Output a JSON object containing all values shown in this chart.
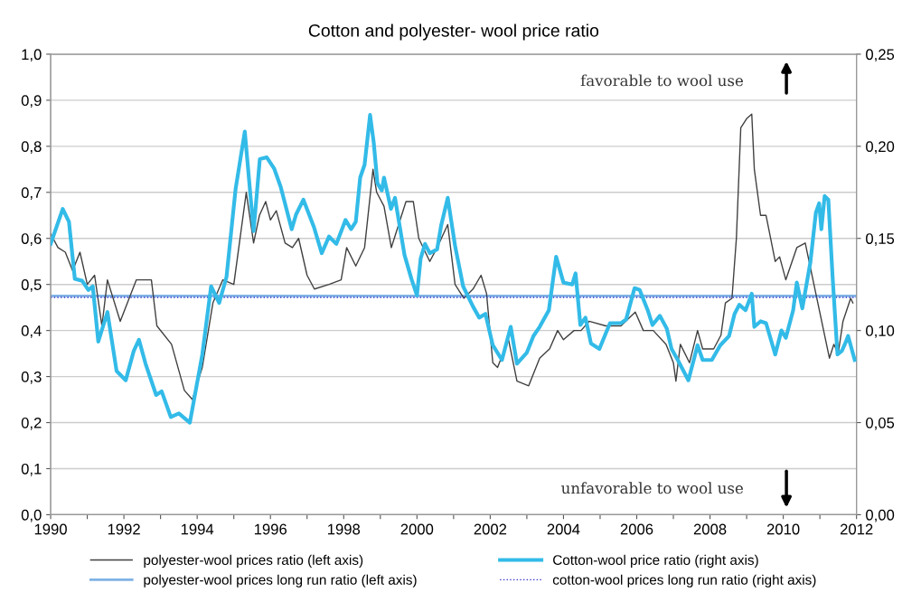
{
  "chart_data": {
    "type": "line",
    "title": "Cotton and polyester- wool price ratio",
    "xlim": [
      1990,
      2012
    ],
    "xticks": [
      1990,
      {
        "value": 1991,
        "label": null
      },
      1992,
      {
        "value": 1993,
        "label": null
      },
      1994,
      {
        "value": 1995,
        "label": null
      },
      1996,
      {
        "value": 1997,
        "label": null
      },
      1998,
      {
        "value": 1999,
        "label": null
      },
      2000,
      {
        "value": 2001,
        "label": null
      },
      2002,
      {
        "value": 2003,
        "label": null
      },
      2004,
      {
        "value": 2005,
        "label": null
      },
      2006,
      {
        "value": 2007,
        "label": null
      },
      2008,
      {
        "value": 2009,
        "label": null
      },
      2010,
      {
        "value": 2011,
        "label": null
      },
      2012
    ],
    "ylim": [
      0,
      1
    ],
    "yticks": [
      {
        "value": 0,
        "label": "0,0"
      },
      {
        "value": 0.1,
        "label": "0,1"
      },
      {
        "value": 0.2,
        "label": "0,2"
      },
      {
        "value": 0.3,
        "label": "0,3"
      },
      {
        "value": 0.4,
        "label": "0,4"
      },
      {
        "value": 0.5,
        "label": "0,5"
      },
      {
        "value": 0.6,
        "label": "0,6"
      },
      {
        "value": 0.7,
        "label": "0,7"
      },
      {
        "value": 0.8,
        "label": "0,8"
      },
      {
        "value": 0.9,
        "label": "0,9"
      },
      {
        "value": 1,
        "label": "1,0"
      }
    ],
    "y2lim": [
      0,
      0.25
    ],
    "y2ticks": [
      {
        "value": 0,
        "label": "0,00"
      },
      {
        "value": 0.05,
        "label": "0,05"
      },
      {
        "value": 0.1,
        "label": "0,10"
      },
      {
        "value": 0.15,
        "label": "0,15"
      },
      {
        "value": 0.2,
        "label": "0,20"
      },
      {
        "value": 0.25,
        "label": "0,25"
      }
    ],
    "grid": "y",
    "legend": "bottom",
    "annotations": [
      "favorable to wool use",
      "unfavorable to wool use"
    ],
    "series": [
      {
        "name": "polyester-wool prices ratio (left axis)",
        "color": "#404040",
        "axis": "y",
        "line_style": "solid",
        "x": [
          1990.0,
          1990.2,
          1990.4,
          1990.6,
          1990.8,
          1991.0,
          1991.2,
          1991.4,
          1991.55,
          1991.9,
          1992.34,
          1992.75,
          1992.9,
          1993.3,
          1993.65,
          1993.87,
          1994.14,
          1994.43,
          1994.7,
          1995.0,
          1995.34,
          1995.54,
          1995.7,
          1995.87,
          1996.0,
          1996.16,
          1996.4,
          1996.6,
          1996.77,
          1997.0,
          1997.2,
          1997.6,
          1997.93,
          1998.08,
          1998.33,
          1998.57,
          1998.8,
          1998.9,
          1999.1,
          1999.3,
          1999.5,
          1999.7,
          1999.9,
          2000.05,
          2000.35,
          2000.55,
          2000.84,
          2001.04,
          2001.28,
          2001.53,
          2001.75,
          2001.9,
          2002.07,
          2002.2,
          2002.5,
          2002.73,
          2003.05,
          2003.35,
          2003.62,
          2003.84,
          2004.0,
          2004.29,
          2004.48,
          2004.7,
          2005.15,
          2005.57,
          2005.96,
          2006.18,
          2006.45,
          2006.8,
          2007.0,
          2007.07,
          2007.19,
          2007.44,
          2007.66,
          2007.8,
          2008.1,
          2008.3,
          2008.42,
          2008.6,
          2008.72,
          2008.84,
          2009.0,
          2009.14,
          2009.21,
          2009.38,
          2009.53,
          2009.78,
          2009.9,
          2010.07,
          2010.37,
          2010.6,
          2010.89,
          2011.26,
          2011.38,
          2011.5,
          2011.63,
          2011.84,
          2011.9
        ],
        "values": [
          0.61,
          0.58,
          0.57,
          0.53,
          0.57,
          0.5,
          0.52,
          0.41,
          0.51,
          0.42,
          0.51,
          0.51,
          0.41,
          0.37,
          0.27,
          0.25,
          0.32,
          0.46,
          0.51,
          0.5,
          0.7,
          0.59,
          0.65,
          0.68,
          0.64,
          0.66,
          0.59,
          0.58,
          0.6,
          0.52,
          0.49,
          0.5,
          0.51,
          0.58,
          0.54,
          0.58,
          0.75,
          0.7,
          0.67,
          0.58,
          0.63,
          0.68,
          0.68,
          0.6,
          0.55,
          0.58,
          0.63,
          0.5,
          0.47,
          0.49,
          0.52,
          0.48,
          0.33,
          0.32,
          0.38,
          0.29,
          0.28,
          0.34,
          0.36,
          0.4,
          0.38,
          0.4,
          0.4,
          0.42,
          0.41,
          0.41,
          0.44,
          0.4,
          0.4,
          0.37,
          0.33,
          0.29,
          0.37,
          0.33,
          0.4,
          0.36,
          0.36,
          0.39,
          0.46,
          0.47,
          0.6,
          0.84,
          0.86,
          0.87,
          0.75,
          0.65,
          0.65,
          0.55,
          0.56,
          0.51,
          0.58,
          0.59,
          0.48,
          0.34,
          0.37,
          0.35,
          0.42,
          0.47,
          0.46
        ]
      },
      {
        "name": "Cotton-wool price ratio (right axis)",
        "color": "#33bbe8",
        "axis": "y2",
        "line_style": "solid",
        "x": [
          1990.0,
          1990.33,
          1990.5,
          1990.66,
          1990.86,
          1991.03,
          1991.15,
          1991.3,
          1991.55,
          1991.8,
          1992.05,
          1992.27,
          1992.41,
          1992.59,
          1992.88,
          1993.03,
          1993.28,
          1993.5,
          1993.8,
          1994.14,
          1994.38,
          1994.6,
          1994.8,
          1995.05,
          1995.3,
          1995.54,
          1995.71,
          1995.9,
          1996.1,
          1996.28,
          1996.58,
          1996.7,
          1996.9,
          1997.19,
          1997.4,
          1997.6,
          1997.8,
          1998.05,
          1998.2,
          1998.33,
          1998.45,
          1998.57,
          1998.72,
          1998.82,
          1998.92,
          1999.04,
          1999.1,
          1999.29,
          1999.4,
          1999.66,
          1999.85,
          2000.0,
          2000.1,
          2000.22,
          2000.35,
          2000.55,
          2000.66,
          2000.84,
          2001.04,
          2001.26,
          2001.53,
          2001.7,
          2001.87,
          2002.07,
          2002.32,
          2002.56,
          2002.73,
          2003.0,
          2003.18,
          2003.35,
          2003.6,
          2003.8,
          2004.0,
          2004.24,
          2004.33,
          2004.46,
          2004.6,
          2004.75,
          2004.98,
          2005.27,
          2005.57,
          2005.71,
          2005.94,
          2006.08,
          2006.3,
          2006.43,
          2006.63,
          2006.82,
          2006.95,
          2007.12,
          2007.41,
          2007.66,
          2007.8,
          2008.05,
          2008.28,
          2008.52,
          2008.67,
          2008.8,
          2008.97,
          2009.14,
          2009.21,
          2009.38,
          2009.53,
          2009.78,
          2009.95,
          2010.07,
          2010.27,
          2010.37,
          2010.52,
          2010.74,
          2010.89,
          2010.98,
          2011.04,
          2011.13,
          2011.23,
          2011.35,
          2011.48,
          2011.6,
          2011.67,
          2011.77,
          2011.95
        ],
        "values": [
          0.147,
          0.166,
          0.159,
          0.128,
          0.127,
          0.122,
          0.124,
          0.094,
          0.11,
          0.078,
          0.073,
          0.089,
          0.095,
          0.082,
          0.065,
          0.067,
          0.053,
          0.055,
          0.05,
          0.087,
          0.124,
          0.115,
          0.129,
          0.177,
          0.208,
          0.154,
          0.193,
          0.194,
          0.188,
          0.178,
          0.155,
          0.163,
          0.171,
          0.156,
          0.142,
          0.151,
          0.147,
          0.16,
          0.155,
          0.159,
          0.183,
          0.19,
          0.217,
          0.202,
          0.18,
          0.176,
          0.183,
          0.166,
          0.172,
          0.141,
          0.128,
          0.119,
          0.139,
          0.147,
          0.142,
          0.144,
          0.157,
          0.172,
          0.146,
          0.124,
          0.113,
          0.107,
          0.109,
          0.092,
          0.084,
          0.102,
          0.082,
          0.088,
          0.097,
          0.102,
          0.111,
          0.14,
          0.126,
          0.125,
          0.131,
          0.103,
          0.107,
          0.093,
          0.09,
          0.104,
          0.104,
          0.106,
          0.123,
          0.122,
          0.111,
          0.103,
          0.108,
          0.101,
          0.09,
          0.084,
          0.073,
          0.092,
          0.084,
          0.084,
          0.092,
          0.097,
          0.109,
          0.114,
          0.111,
          0.12,
          0.102,
          0.105,
          0.104,
          0.087,
          0.1,
          0.096,
          0.111,
          0.126,
          0.112,
          0.137,
          0.164,
          0.169,
          0.155,
          0.173,
          0.171,
          0.128,
          0.087,
          0.089,
          0.092,
          0.097,
          0.084
        ]
      },
      {
        "name": "polyester-wool prices long run ratio (left axis)",
        "color": "#7fb2e5",
        "axis": "y",
        "line_style": "solid",
        "x": [
          1990,
          2012
        ],
        "values": [
          0.475,
          0.475
        ]
      },
      {
        "name": "cotton-wool prices long run ratio (right axis)",
        "color": "#3333cc",
        "axis": "y2",
        "line_style": "dotted",
        "x": [
          1990,
          2012
        ],
        "values": [
          0.118,
          0.118
        ]
      }
    ]
  }
}
